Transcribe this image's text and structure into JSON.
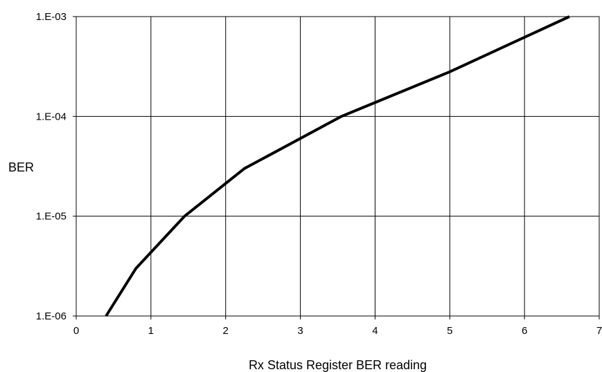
{
  "chart_data": {
    "type": "line",
    "title": "",
    "xlabel": "Rx Status Register BER reading",
    "ylabel": "BER",
    "xlim": [
      0,
      7
    ],
    "ylim": [
      1e-06,
      0.001
    ],
    "y_scale": "log",
    "grid": true,
    "legend": "none",
    "x_ticks": [
      {
        "value": 0,
        "label": "0"
      },
      {
        "value": 1,
        "label": "1"
      },
      {
        "value": 2,
        "label": "2"
      },
      {
        "value": 3,
        "label": "3"
      },
      {
        "value": 4,
        "label": "4"
      },
      {
        "value": 5,
        "label": "5"
      },
      {
        "value": 6,
        "label": "6"
      },
      {
        "value": 7,
        "label": "7"
      }
    ],
    "y_ticks": [
      {
        "value": 1e-06,
        "label": "1.E-06"
      },
      {
        "value": 1e-05,
        "label": "1.E-05"
      },
      {
        "value": 0.0001,
        "label": "1.E-04"
      },
      {
        "value": 0.001,
        "label": "1.E-03"
      }
    ],
    "series": [
      {
        "color": "#000000",
        "points": [
          {
            "x": 0.4,
            "y": 1e-06
          },
          {
            "x": 0.8,
            "y": 3e-06
          },
          {
            "x": 1.45,
            "y": 1e-05
          },
          {
            "x": 2.25,
            "y": 3e-05
          },
          {
            "x": 3.55,
            "y": 0.0001
          },
          {
            "x": 5.0,
            "y": 0.00028
          },
          {
            "x": 6.6,
            "y": 0.001
          }
        ]
      }
    ]
  }
}
